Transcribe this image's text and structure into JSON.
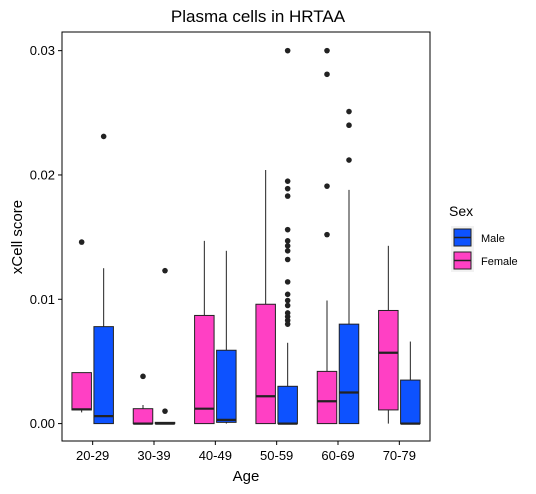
{
  "chart_data": {
    "type": "boxplot",
    "title": "Plasma cells in HRTAA",
    "xlabel": "Age",
    "ylabel": "xCell score",
    "categories": [
      "20-29",
      "30-39",
      "40-49",
      "50-59",
      "60-69",
      "70-79"
    ],
    "ylim": [
      -0.0014,
      0.0315
    ],
    "y_ticks": [
      0,
      0.01,
      0.02,
      0.03
    ],
    "y_tick_labels": [
      "0.00",
      "0.01",
      "0.02",
      "0.03"
    ],
    "grid": false,
    "legend": {
      "title": "Sex",
      "position": "right",
      "entries": [
        {
          "label": "Male",
          "color": "#0d52ff"
        },
        {
          "label": "Female",
          "color": "#ff40c4"
        }
      ]
    },
    "series": [
      {
        "name": "Female",
        "color": "#ff40c4",
        "offset": -1,
        "boxes": [
          {
            "category": "20-29",
            "min": 0.0009,
            "q1": 0.0011,
            "median": 0.00115,
            "q3": 0.0041,
            "max": 0.0041,
            "outliers": [
              0.0146
            ]
          },
          {
            "category": "30-39",
            "min": 0.0,
            "q1": 0.0,
            "median": 0.0,
            "q3": 0.0012,
            "max": 0.0015,
            "outliers": [
              0.0038
            ]
          },
          {
            "category": "40-49",
            "min": 0.0,
            "q1": 0.0,
            "median": 0.0012,
            "q3": 0.0087,
            "max": 0.0147,
            "outliers": []
          },
          {
            "category": "50-59",
            "min": 0.0,
            "q1": 0.0,
            "median": 0.0022,
            "q3": 0.0096,
            "max": 0.0204,
            "outliers": []
          },
          {
            "category": "60-69",
            "min": 0.0,
            "q1": 0.0,
            "median": 0.0018,
            "q3": 0.0042,
            "max": 0.0099,
            "outliers": [
              0.0152,
              0.0191,
              0.0281,
              0.03
            ]
          },
          {
            "category": "70-79",
            "min": 0.0,
            "q1": 0.0011,
            "median": 0.0057,
            "q3": 0.0091,
            "max": 0.0143,
            "outliers": []
          }
        ]
      },
      {
        "name": "Male",
        "color": "#0d52ff",
        "offset": 1,
        "boxes": [
          {
            "category": "20-29",
            "min": 0.0,
            "q1": 0.0,
            "median": 0.0006,
            "q3": 0.0078,
            "max": 0.0125,
            "outliers": [
              0.0231
            ]
          },
          {
            "category": "30-39",
            "min": 0.0,
            "q1": 0.0,
            "median": 0.0,
            "q3": 0.0001,
            "max": 0.0001,
            "outliers": [
              0.001,
              0.0123
            ]
          },
          {
            "category": "40-49",
            "min": 0.0,
            "q1": 0.0001,
            "median": 0.0003,
            "q3": 0.0059,
            "max": 0.0139,
            "outliers": []
          },
          {
            "category": "50-59",
            "min": 0.0,
            "q1": 0.0,
            "median": 0.0,
            "q3": 0.003,
            "max": 0.0065,
            "outliers": [
              0.008,
              0.0083,
              0.0086,
              0.0089,
              0.0095,
              0.0099,
              0.0104,
              0.0114,
              0.0132,
              0.0139,
              0.0143,
              0.0147,
              0.0156,
              0.0183,
              0.0189,
              0.0195,
              0.03
            ]
          },
          {
            "category": "60-69",
            "min": 0.0,
            "q1": 0.0,
            "median": 0.0025,
            "q3": 0.008,
            "max": 0.0188,
            "outliers": [
              0.0212,
              0.024,
              0.0251
            ]
          },
          {
            "category": "70-79",
            "min": 0.0,
            "q1": 0.0,
            "median": 0.0,
            "q3": 0.0035,
            "max": 0.0066,
            "outliers": []
          }
        ]
      }
    ]
  }
}
